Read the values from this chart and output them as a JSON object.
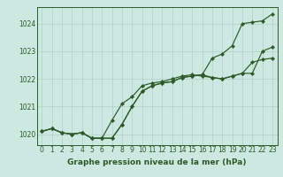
{
  "xlabel": "Graphe pression niveau de la mer (hPa)",
  "xlim": [
    -0.5,
    23.5
  ],
  "ylim": [
    1019.6,
    1024.6
  ],
  "yticks": [
    1020,
    1021,
    1022,
    1023,
    1024
  ],
  "xticks": [
    0,
    1,
    2,
    3,
    4,
    5,
    6,
    7,
    8,
    9,
    10,
    11,
    12,
    13,
    14,
    15,
    16,
    17,
    18,
    19,
    20,
    21,
    22,
    23
  ],
  "background_color": "#cce8e0",
  "line_color": "#2d5a27",
  "grid_color": "#b0d0c8",
  "series": [
    [
      1020.1,
      1020.2,
      1020.05,
      1020.0,
      1020.05,
      1019.85,
      1019.85,
      1019.85,
      1020.35,
      1021.0,
      1021.55,
      1021.75,
      1021.85,
      1021.9,
      1022.05,
      1022.1,
      1022.15,
      1022.05,
      1022.0,
      1022.1,
      1022.2,
      1022.2,
      1023.0,
      1023.15
    ],
    [
      1020.1,
      1020.2,
      1020.05,
      1020.0,
      1020.05,
      1019.85,
      1019.85,
      1020.5,
      1021.1,
      1021.35,
      1021.75,
      1021.85,
      1021.9,
      1022.0,
      1022.1,
      1022.15,
      1022.1,
      1022.05,
      1022.0,
      1022.1,
      1022.2,
      1022.6,
      1022.7,
      1022.75
    ],
    [
      1020.1,
      1020.2,
      1020.05,
      1020.0,
      1020.05,
      1019.85,
      1019.85,
      1019.85,
      1020.35,
      1021.0,
      1021.55,
      1021.75,
      1021.85,
      1021.9,
      1022.05,
      1022.1,
      1022.15,
      1022.75,
      1022.9,
      1023.2,
      1024.0,
      1024.05,
      1024.1,
      1024.35
    ]
  ],
  "tick_fontsize": 5.5,
  "xlabel_fontsize": 6.5,
  "marker_size": 2.2,
  "line_width": 0.85
}
